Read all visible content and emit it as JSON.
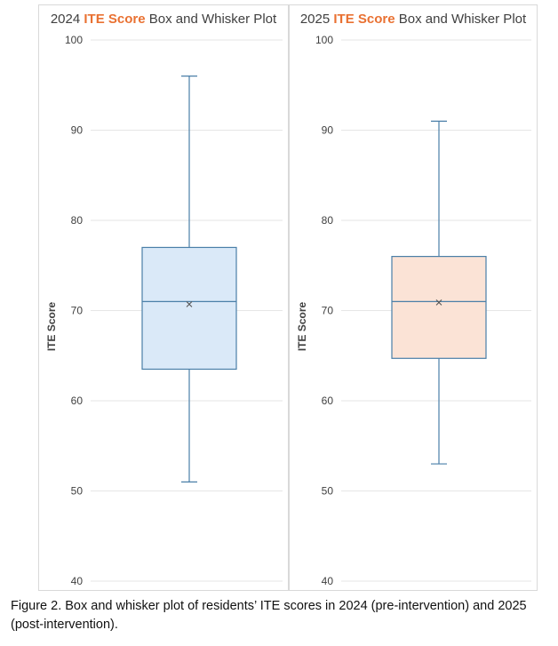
{
  "caption": "Figure 2. Box and whisker plot of residents’ ITE scores in 2024 (pre-intervention) and 2025 (post-intervention).",
  "chart_data": [
    {
      "type": "box",
      "title_parts": [
        "2024 ",
        "ITE Score",
        " Box and Whisker Plot"
      ],
      "ylabel": "ITE Score",
      "ylim": [
        40,
        100
      ],
      "yticks": [
        40,
        50,
        60,
        70,
        80,
        90,
        100
      ],
      "grid": true,
      "box": {
        "min": 51,
        "q1": 63.5,
        "median": 71,
        "mean": 70.7,
        "q3": 77,
        "max": 96
      },
      "fill_color": "#dae9f8",
      "stroke_color": "#4a7fa8",
      "highlight_color": "#e97132"
    },
    {
      "type": "box",
      "title_parts": [
        "2025 ",
        "ITE Score",
        " Box and Whisker Plot"
      ],
      "ylabel": "ITE Score",
      "ylim": [
        40,
        100
      ],
      "yticks": [
        40,
        50,
        60,
        70,
        80,
        90,
        100
      ],
      "grid": true,
      "box": {
        "min": 53,
        "q1": 64.7,
        "median": 71,
        "mean": 70.9,
        "q3": 76,
        "max": 91
      },
      "fill_color": "#fbe3d6",
      "stroke_color": "#4a7fa8",
      "highlight_color": "#e97132"
    }
  ]
}
